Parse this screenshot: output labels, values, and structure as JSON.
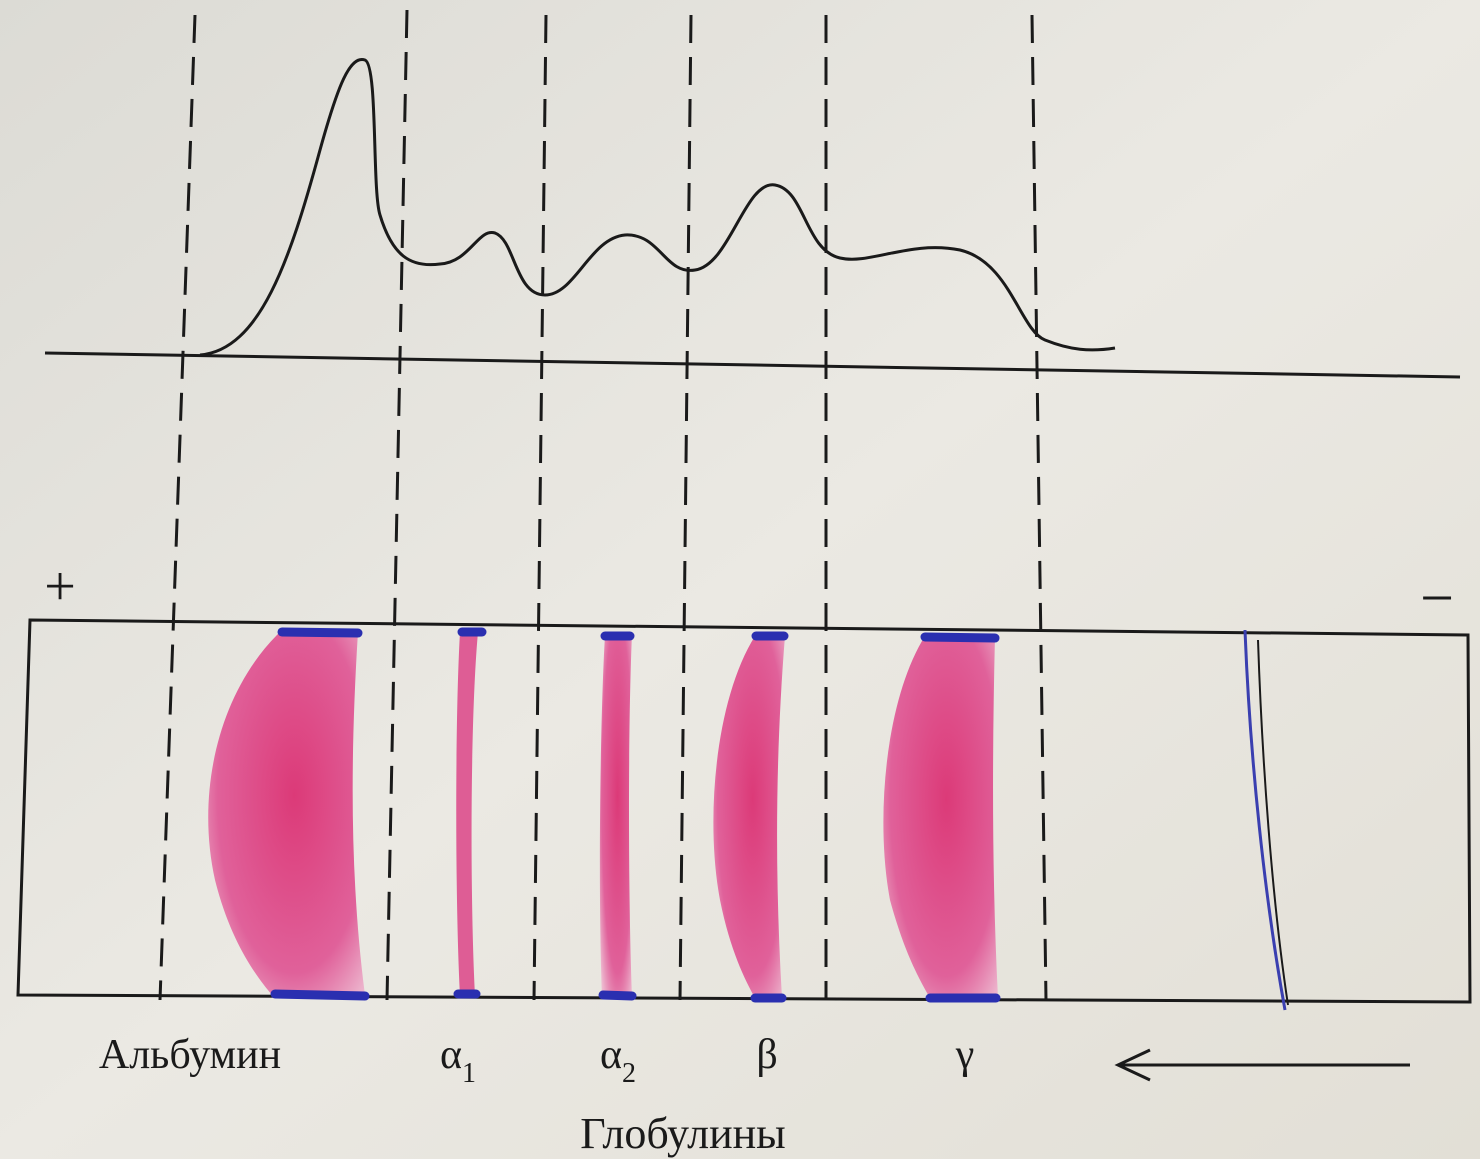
{
  "electrode_plus": "+",
  "electrode_minus": "−",
  "fractions": [
    {
      "label": "Альбумин"
    },
    {
      "symbol": "α",
      "subscript": "1"
    },
    {
      "symbol": "α",
      "subscript": "2"
    },
    {
      "symbol": "β"
    },
    {
      "symbol": "γ"
    }
  ],
  "group_label": "Глобулины"
}
